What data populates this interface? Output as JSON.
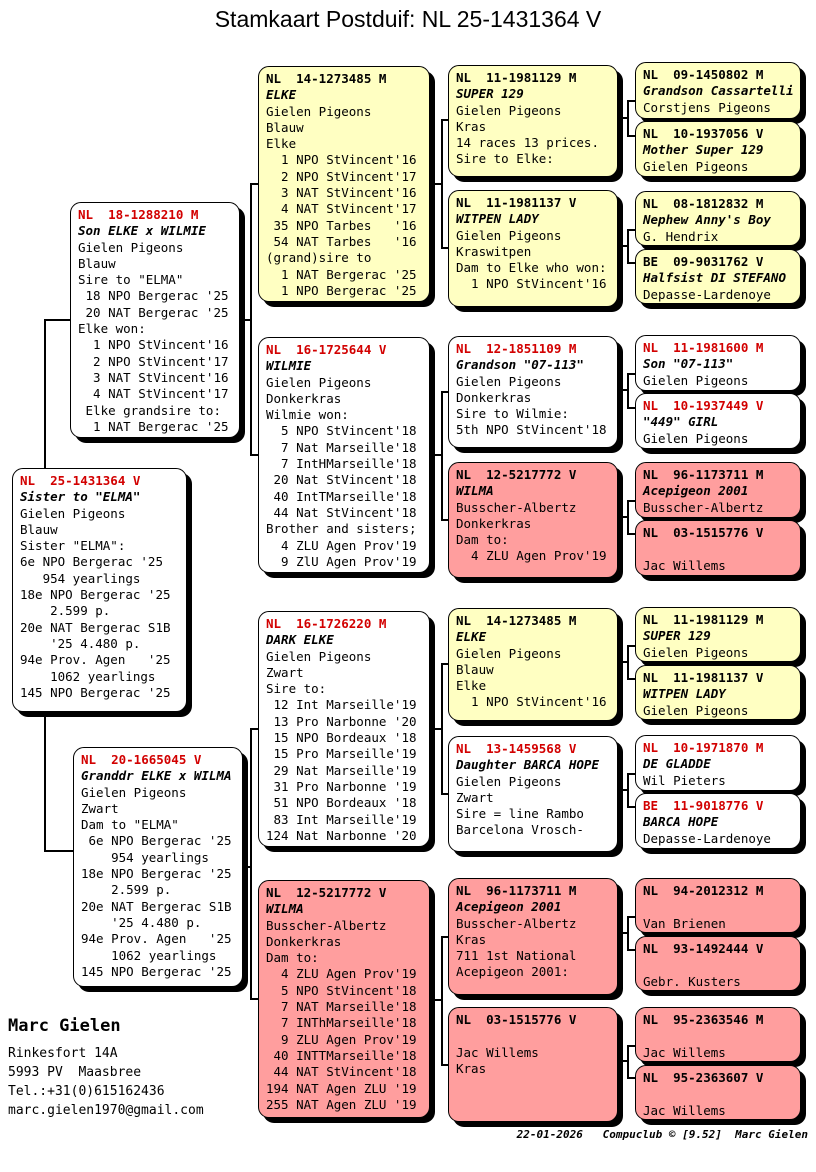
{
  "title": "Stamkaart Postduif: NL  25-1431364 V",
  "colors": {
    "box_yellow": "#FFFFC2",
    "box_pink": "#FF9E9E",
    "box_white": "#FFFFFF",
    "ring_red": "#D20000",
    "text_black": "#000000"
  },
  "contact": {
    "name": "Marc Gielen",
    "address_line1": "Rinkesfort 14A",
    "address_line2": "5993 PV  Maasbree",
    "phone": "Tel.:+31(0)615162436",
    "email": "marc.gielen1970@gmail.com"
  },
  "footer": {
    "line": "22-01-2026   Compuclub © [9.52]  Marc Gielen"
  },
  "pedigree": {
    "boxes": [
      {
        "ring": "NL  18-1288210 M",
        "name": "Son ELKE x WILMIE",
        "bg": "box_white",
        "ring_color": "ring_red",
        "lines": [
          "Gielen Pigeons",
          "Blauw",
          "Sire to \"ELMA\"",
          " 18 NPO Bergerac '25",
          " 20 NAT Bergerac '25",
          "Elke won:",
          "  1 NPO StVincent'16",
          "  2 NPO StVincent'17",
          "  3 NAT StVincent'16",
          "  4 NAT StVincent'17",
          " Elke grandsire to:",
          "  1 NAT Bergerac '25"
        ]
      },
      {
        "ring": "NL  25-1431364 V",
        "name": "Sister to \"ELMA\"",
        "bg": "box_white",
        "ring_color": "ring_red",
        "lines": [
          "Gielen Pigeons",
          "Blauw",
          "Sister \"ELMA\":",
          "6e NPO Bergerac '25",
          "   954 yearlings",
          "18e NPO Bergerac '25",
          "    2.599 p.",
          "20e NAT Bergerac S1B",
          "    '25 4.480 p.",
          "94e Prov. Agen   '25",
          "    1062 yearlings",
          "145 NPO Bergerac '25"
        ]
      },
      {
        "ring": "NL  20-1665045 V",
        "name": "Granddr ELKE x WILMA",
        "bg": "box_white",
        "ring_color": "ring_red",
        "lines": [
          "Gielen Pigeons",
          "Zwart",
          "Dam to \"ELMA\"",
          " 6e NPO Bergerac '25",
          "    954 yearlings",
          "18e NPO Bergerac '25",
          "    2.599 p.",
          "20e NAT Bergerac S1B",
          "    '25 4.480 p.",
          "94e Prov. Agen   '25",
          "    1062 yearlings",
          "145 NPO Bergerac '25"
        ]
      },
      {
        "ring": "NL  14-1273485 M",
        "name": "ELKE",
        "bg": "box_yellow",
        "ring_color": "text_black",
        "lines": [
          "Gielen Pigeons",
          "Blauw",
          "Elke",
          "  1 NPO StVincent'16",
          "  2 NPO StVincent'17",
          "  3 NAT StVincent'16",
          "  4 NAT StVincent'17",
          " 35 NPO Tarbes   '16",
          " 54 NAT Tarbes   '16",
          "(grand)sire to",
          "  1 NAT Bergerac '25",
          "  1 NPO Bergerac '25"
        ]
      },
      {
        "ring": "NL  16-1725644 V",
        "name": "WILMIE",
        "bg": "box_white",
        "ring_color": "ring_red",
        "lines": [
          "Gielen Pigeons",
          "Donkerkras",
          "Wilmie won:",
          "  5 NPO StVincent'18",
          "  7 Nat Marseille'18",
          "  7 IntHMarseille'18",
          " 20 Nat StVincent'18",
          " 40 IntTMarseille'18",
          " 44 Nat StVincent'18",
          "Brother and sisters;",
          "  4 ZLU Agen Prov'19",
          "  9 ZlU Agen Prov'19"
        ]
      },
      {
        "ring": "NL  16-1726220 M",
        "name": "DARK ELKE",
        "bg": "box_white",
        "ring_color": "ring_red",
        "lines": [
          "Gielen Pigeons",
          "Zwart",
          "Sire to:",
          " 12 Int Marseille'19",
          " 13 Pro Narbonne '20",
          " 15 NPO Bordeaux '18",
          " 15 Pro Marseille'19",
          " 29 Nat Marseille'19",
          " 31 Pro Narbonne '19",
          " 51 NPO Bordeaux '18",
          " 83 Int Marseille'19",
          "124 Nat Narbonne '20"
        ]
      },
      {
        "ring": "NL  12-5217772 V",
        "name": "WILMA",
        "bg": "box_pink",
        "ring_color": "text_black",
        "lines": [
          "Busscher-Albertz",
          "Donkerkras",
          "Dam to:",
          "  4 ZLU Agen Prov'19",
          "  5 NPO StVincent'18",
          "  7 NAT Marseille'18",
          "  7 INThMarseille'18",
          "  9 ZLU Agen Prov'19",
          " 40 INTTMarseille'18",
          " 44 NAT StVincent'18",
          "194 NAT Agen ZLU '19",
          "255 NAT Agen ZLU '19"
        ]
      },
      {
        "ring": "NL  11-1981129 M",
        "name": "SUPER 129",
        "bg": "box_yellow",
        "ring_color": "text_black",
        "lines": [
          "Gielen Pigeons",
          "Kras",
          "14 races 13 prices.",
          "Sire to Elke:"
        ]
      },
      {
        "ring": "NL  11-1981137 V",
        "name": "WITPEN LADY",
        "bg": "box_yellow",
        "ring_color": "text_black",
        "lines": [
          "Gielen Pigeons",
          "Kraswitpen",
          "Dam to Elke who won:",
          "  1 NPO StVincent'16"
        ]
      },
      {
        "ring": "NL  12-1851109 M",
        "name": "Grandson \"07-113\"",
        "bg": "box_white",
        "ring_color": "ring_red",
        "lines": [
          "Gielen Pigeons",
          "Donkerkras",
          "Sire to Wilmie:",
          "5th NPO StVincent'18"
        ]
      },
      {
        "ring": "NL  12-5217772 V",
        "name": "WILMA",
        "bg": "box_pink",
        "ring_color": "text_black",
        "lines": [
          "Busscher-Albertz",
          "Donkerkras",
          "Dam to:",
          "  4 ZLU Agen Prov'19"
        ]
      },
      {
        "ring": "NL  14-1273485 M",
        "name": "ELKE",
        "bg": "box_yellow",
        "ring_color": "text_black",
        "lines": [
          "Gielen Pigeons",
          "Blauw",
          "Elke",
          "  1 NPO StVincent'16"
        ]
      },
      {
        "ring": "NL  13-1459568 V",
        "name": "Daughter BARCA HOPE",
        "bg": "box_white",
        "ring_color": "ring_red",
        "lines": [
          "Gielen Pigeons",
          "Zwart",
          "Sire = line Rambo",
          "Barcelona Vrosch-"
        ]
      },
      {
        "ring": "NL  96-1173711 M",
        "name": "Acepigeon 2001",
        "bg": "box_pink",
        "ring_color": "text_black",
        "lines": [
          "Busscher-Albertz",
          "Kras",
          "711 1st National",
          "Acepigeon 2001:"
        ]
      },
      {
        "ring": "NL  03-1515776 V",
        "name": "",
        "bg": "box_pink",
        "ring_color": "text_black",
        "lines": [
          "Jac Willems",
          "Kras"
        ]
      },
      {
        "ring": "NL  09-1450802 M",
        "name": "Grandson Cassartelli",
        "bg": "box_yellow",
        "ring_color": "text_black",
        "lines": [
          "Corstjens Pigeons"
        ]
      },
      {
        "ring": "NL  10-1937056 V",
        "name": "Mother Super 129",
        "bg": "box_yellow",
        "ring_color": "text_black",
        "lines": [
          "Gielen Pigeons"
        ]
      },
      {
        "ring": "NL  08-1812832 M",
        "name": "Nephew Anny's Boy",
        "bg": "box_yellow",
        "ring_color": "text_black",
        "lines": [
          "G. Hendrix"
        ]
      },
      {
        "ring": "BE  09-9031762 V",
        "name": "Halfsist DI STEFANO",
        "bg": "box_yellow",
        "ring_color": "text_black",
        "lines": [
          "Depasse-Lardenoye"
        ]
      },
      {
        "ring": "NL  11-1981600 M",
        "name": "Son \"07-113\"",
        "bg": "box_white",
        "ring_color": "ring_red",
        "lines": [
          "Gielen Pigeons"
        ]
      },
      {
        "ring": "NL  10-1937449 V",
        "name": "\"449\" GIRL",
        "bg": "box_white",
        "ring_color": "ring_red",
        "lines": [
          "Gielen Pigeons"
        ]
      },
      {
        "ring": "NL  96-1173711 M",
        "name": "Acepigeon 2001",
        "bg": "box_pink",
        "ring_color": "text_black",
        "lines": [
          "Busscher-Albertz"
        ]
      },
      {
        "ring": "NL  03-1515776 V",
        "name": "",
        "bg": "box_pink",
        "ring_color": "text_black",
        "lines": [
          "Jac Willems"
        ]
      },
      {
        "ring": "NL  11-1981129 M",
        "name": "SUPER 129",
        "bg": "box_yellow",
        "ring_color": "text_black",
        "lines": [
          "Gielen Pigeons"
        ]
      },
      {
        "ring": "NL  11-1981137 V",
        "name": "WITPEN LADY",
        "bg": "box_yellow",
        "ring_color": "text_black",
        "lines": [
          "Gielen Pigeons"
        ]
      },
      {
        "ring": "NL  10-1971870 M",
        "name": "DE GLADDE",
        "bg": "box_white",
        "ring_color": "ring_red",
        "lines": [
          "Wil Pieters"
        ]
      },
      {
        "ring": "BE  11-9018776 V",
        "name": "BARCA HOPE",
        "bg": "box_white",
        "ring_color": "ring_red",
        "lines": [
          "Depasse-Lardenoye"
        ]
      },
      {
        "ring": "NL  94-2012312 M",
        "name": "",
        "bg": "box_pink",
        "ring_color": "text_black",
        "lines": [
          "Van Brienen"
        ]
      },
      {
        "ring": "NL  93-1492444 V",
        "name": "",
        "bg": "box_pink",
        "ring_color": "text_black",
        "lines": [
          "Gebr. Kusters"
        ]
      },
      {
        "ring": "NL  95-2363546 M",
        "name": "",
        "bg": "box_pink",
        "ring_color": "text_black",
        "lines": [
          "Jac Willems"
        ]
      },
      {
        "ring": "NL  95-2363607 V",
        "name": "",
        "bg": "box_pink",
        "ring_color": "text_black",
        "lines": [
          "Jac Willems"
        ]
      }
    ]
  }
}
